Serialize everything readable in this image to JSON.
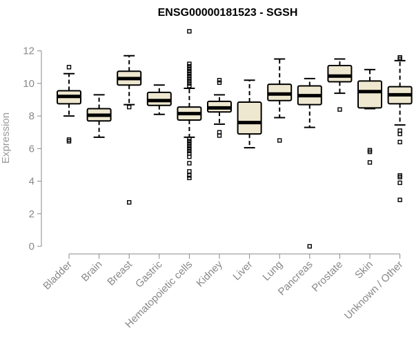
{
  "chart_data": {
    "type": "boxplot",
    "title": "ENSG00000181523 - SGSH",
    "ylabel": "Expression",
    "xlabel": "",
    "ylim": [
      0,
      13.3
    ],
    "yticks": [
      0,
      2,
      4,
      6,
      8,
      10,
      12
    ],
    "grid": false,
    "legend": "none",
    "box_fill": "#efe8d0",
    "stroke": "#000000",
    "categories": [
      "Bladder",
      "Brain",
      "Breast",
      "Gastric",
      "Hematopoietic cells",
      "Kidney",
      "Liver",
      "Lung",
      "Pancreas",
      "Prostate",
      "Skin",
      "Unknown / Other"
    ],
    "boxes": [
      {
        "category": "Bladder",
        "whisker_low": 8.0,
        "q1": 8.75,
        "median": 9.2,
        "q3": 9.55,
        "whisker_high": 10.6,
        "outliers": [
          11.0,
          6.55,
          6.45
        ]
      },
      {
        "category": "Brain",
        "whisker_low": 6.7,
        "q1": 7.7,
        "median": 8.05,
        "q3": 8.45,
        "whisker_high": 9.3,
        "outliers": []
      },
      {
        "category": "Breast",
        "whisker_low": 8.7,
        "q1": 9.9,
        "median": 10.3,
        "q3": 10.75,
        "whisker_high": 11.7,
        "outliers": [
          8.55,
          2.7
        ]
      },
      {
        "category": "Gastric",
        "whisker_low": 8.1,
        "q1": 8.65,
        "median": 8.95,
        "q3": 9.45,
        "whisker_high": 9.9,
        "outliers": []
      },
      {
        "category": "Hematopoietic cells",
        "whisker_low": 6.7,
        "q1": 7.75,
        "median": 8.15,
        "q3": 8.55,
        "whisker_high": 9.7,
        "outliers": [
          13.2,
          11.2,
          11.05,
          10.9,
          10.75,
          10.6,
          10.45,
          10.3,
          10.15,
          10.0,
          9.85,
          6.6,
          6.45,
          6.3,
          6.15,
          6.0,
          5.85,
          5.7,
          5.5,
          5.1,
          4.6,
          4.35,
          4.2
        ]
      },
      {
        "category": "Kidney",
        "whisker_low": 7.5,
        "q1": 8.25,
        "median": 8.5,
        "q3": 8.9,
        "whisker_high": 9.3,
        "outliers": [
          10.2,
          10.05,
          7.0,
          6.8
        ]
      },
      {
        "category": "Liver",
        "whisker_low": 6.05,
        "q1": 6.9,
        "median": 7.6,
        "q3": 8.85,
        "whisker_high": 10.2,
        "outliers": []
      },
      {
        "category": "Lung",
        "whisker_low": 7.9,
        "q1": 8.95,
        "median": 9.35,
        "q3": 9.95,
        "whisker_high": 11.5,
        "outliers": [
          6.5
        ]
      },
      {
        "category": "Pancreas",
        "whisker_low": 7.3,
        "q1": 8.7,
        "median": 9.25,
        "q3": 9.85,
        "whisker_high": 10.3,
        "outliers": [
          0.0
        ]
      },
      {
        "category": "Prostate",
        "whisker_low": 9.4,
        "q1": 10.1,
        "median": 10.45,
        "q3": 11.1,
        "whisker_high": 11.5,
        "outliers": [
          8.4
        ]
      },
      {
        "category": "Skin",
        "whisker_low": 8.45,
        "q1": 8.5,
        "median": 9.5,
        "q3": 10.15,
        "whisker_high": 10.85,
        "outliers": [
          5.9,
          5.8,
          5.15
        ]
      },
      {
        "category": "Unknown / Other",
        "whisker_low": 7.45,
        "q1": 8.75,
        "median": 9.3,
        "q3": 9.8,
        "whisker_high": 11.4,
        "outliers": [
          11.6,
          11.5,
          7.1,
          6.9,
          6.4,
          4.35,
          4.25,
          3.9,
          2.85
        ]
      }
    ]
  }
}
